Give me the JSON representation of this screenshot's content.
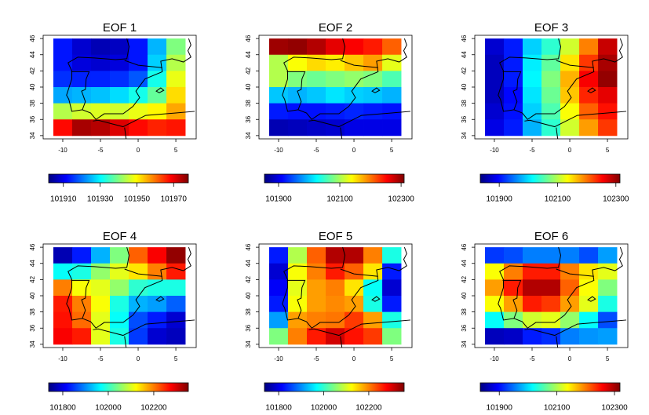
{
  "chart_data": [
    {
      "type": "heatmap",
      "title": "EOF 1",
      "x": [
        -10,
        -7.5,
        -5,
        -2.5,
        0,
        2.5,
        5
      ],
      "y": [
        45,
        43,
        41,
        39,
        37,
        35
      ],
      "xlim": [
        -12.6,
        7.7
      ],
      "ylim": [
        33.6,
        46.4
      ],
      "xticks": [
        -10,
        -5,
        0,
        5
      ],
      "yticks": [
        34,
        36,
        38,
        40,
        42,
        44,
        46
      ],
      "z": [
        [
          101913,
          101908,
          101906,
          101907,
          101913,
          101925,
          101940
        ],
        [
          101913,
          101909,
          101908,
          101909,
          101913,
          101927,
          101944
        ],
        [
          101915,
          101914,
          101914,
          101915,
          101918,
          101932,
          101948
        ],
        [
          101924,
          101925,
          101926,
          101928,
          101932,
          101938,
          101952
        ],
        [
          101944,
          101946,
          101947,
          101946,
          101948,
          101950,
          101956
        ],
        [
          101968,
          101975,
          101974,
          101971,
          101968,
          101966,
          101967
        ]
      ],
      "zlim": [
        101902,
        101978
      ],
      "zticks": [
        101910,
        101930,
        101950,
        101970
      ],
      "colormap": [
        "#00007f",
        "#0000ff",
        "#007fff",
        "#00ffff",
        "#7fff7f",
        "#ffff00",
        "#ff7f00",
        "#ff0000",
        "#7f0000"
      ]
    },
    {
      "type": "heatmap",
      "title": "EOF 2",
      "x": [
        -10,
        -7.5,
        -5,
        -2.5,
        0,
        2.5,
        5
      ],
      "y": [
        45,
        43,
        41,
        39,
        37,
        35
      ],
      "xlim": [
        -12.6,
        7.7
      ],
      "ylim": [
        33.6,
        46.4
      ],
      "xticks": [
        -10,
        -5,
        0,
        5
      ],
      "yticks": [
        34,
        36,
        38,
        40,
        42,
        44,
        46
      ],
      "z": [
        [
          102296,
          102301,
          102287,
          102264,
          102255,
          102242,
          102210
        ],
        [
          102105,
          102137,
          102155,
          102146,
          102164,
          102182,
          102128
        ],
        [
          102105,
          102082,
          102073,
          102082,
          102091,
          102082,
          102059
        ],
        [
          102000,
          101991,
          102000,
          102014,
          102004,
          102000,
          101991
        ],
        [
          101922,
          101918,
          101918,
          101922,
          101927,
          101922,
          101918
        ],
        [
          101877,
          101881,
          101886,
          101890,
          101900,
          101900,
          101900
        ]
      ],
      "zlim": [
        101854,
        102310
      ],
      "zticks": [
        101900,
        102100,
        102300
      ],
      "colormap": [
        "#00007f",
        "#0000ff",
        "#007fff",
        "#00ffff",
        "#7fff7f",
        "#ffff00",
        "#ff7f00",
        "#ff0000",
        "#7f0000"
      ]
    },
    {
      "type": "heatmap",
      "title": "EOF 3",
      "x": [
        -10,
        -7.5,
        -5,
        -2.5,
        0,
        2.5,
        5
      ],
      "y": [
        45,
        43,
        41,
        39,
        37,
        35
      ],
      "xlim": [
        -12.6,
        7.7
      ],
      "ylim": [
        33.6,
        46.4
      ],
      "xticks": [
        -10,
        -5,
        0,
        5
      ],
      "yticks": [
        34,
        36,
        38,
        40,
        42,
        44,
        46
      ],
      "z": [
        [
          101873,
          101907,
          101993,
          102036,
          102113,
          102194,
          102280
        ],
        [
          101864,
          101907,
          102007,
          102060,
          102146,
          102228,
          102295
        ],
        [
          101864,
          101907,
          102012,
          102075,
          102170,
          102257,
          102304
        ],
        [
          101864,
          101897,
          102003,
          102065,
          102161,
          102237,
          102266
        ],
        [
          101873,
          101902,
          101993,
          102051,
          102132,
          102209,
          102247
        ],
        [
          101883,
          101907,
          101979,
          102036,
          102113,
          102180,
          102228
        ]
      ],
      "zlim": [
        101835,
        102314
      ],
      "zticks": [
        101900,
        102100,
        102300
      ],
      "colormap": [
        "#00007f",
        "#0000ff",
        "#007fff",
        "#00ffff",
        "#7fff7f",
        "#ffff00",
        "#ff7f00",
        "#ff0000",
        "#7f0000"
      ]
    },
    {
      "type": "heatmap",
      "title": "EOF 4",
      "x": [
        -10,
        -7.5,
        -5,
        -2.5,
        0,
        2.5,
        5
      ],
      "y": [
        45,
        43,
        41,
        39,
        37,
        35
      ],
      "xlim": [
        -12.6,
        7.7
      ],
      "ylim": [
        33.6,
        46.4
      ],
      "xticks": [
        -10,
        -5,
        0,
        5
      ],
      "yticks": [
        34,
        36,
        38,
        40,
        42,
        44,
        46
      ],
      "z": [
        [
          101769,
          101830,
          101922,
          102045,
          102217,
          102278,
          102340
        ],
        [
          101971,
          101984,
          102057,
          102106,
          102137,
          102199,
          102260
        ],
        [
          102199,
          102119,
          102106,
          102057,
          101996,
          101984,
          101984
        ],
        [
          102260,
          102199,
          102119,
          101984,
          101922,
          101910,
          101873
        ],
        [
          102266,
          102211,
          102106,
          101971,
          101861,
          101830,
          101787
        ],
        [
          102278,
          102260,
          102106,
          101984,
          101849,
          101787,
          101775
        ]
      ],
      "zlim": [
        101738,
        102352
      ],
      "zticks": [
        101800,
        102000,
        102200
      ],
      "colormap": [
        "#00007f",
        "#0000ff",
        "#007fff",
        "#00ffff",
        "#7fff7f",
        "#ffff00",
        "#ff7f00",
        "#ff0000",
        "#7f0000"
      ]
    },
    {
      "type": "heatmap",
      "title": "EOF 5",
      "x": [
        -10,
        -7.5,
        -5,
        -2.5,
        0,
        2.5,
        5
      ],
      "y": [
        45,
        43,
        41,
        39,
        37,
        35
      ],
      "xlim": [
        -12.6,
        7.7
      ],
      "ylim": [
        33.6,
        46.4
      ],
      "xticks": [
        -10,
        -5,
        0,
        5
      ],
      "yticks": [
        34,
        36,
        38,
        40,
        42,
        44,
        46
      ],
      "z": [
        [
          101830,
          102078,
          102221,
          102326,
          102326,
          102202,
          101985
        ],
        [
          101787,
          102121,
          102202,
          102264,
          102221,
          102140,
          101830
        ],
        [
          101811,
          102109,
          102183,
          102202,
          102140,
          101973,
          101787
        ],
        [
          101830,
          102121,
          102183,
          102196,
          102183,
          101985,
          101830
        ],
        [
          101911,
          102183,
          102202,
          102208,
          102245,
          102183,
          101985
        ],
        [
          102047,
          102202,
          102264,
          102307,
          102270,
          102245,
          102047
        ]
      ],
      "zlim": [
        101737,
        102357
      ],
      "zticks": [
        101800,
        102000,
        102200
      ],
      "colormap": [
        "#00007f",
        "#0000ff",
        "#007fff",
        "#00ffff",
        "#7fff7f",
        "#ffff00",
        "#ff7f00",
        "#ff0000",
        "#7f0000"
      ]
    },
    {
      "type": "heatmap",
      "title": "EOF 6",
      "x": [
        -10,
        -7.5,
        -5,
        -2.5,
        0,
        2.5,
        5
      ],
      "y": [
        45,
        43,
        41,
        39,
        37,
        35
      ],
      "xlim": [
        -12.6,
        7.7
      ],
      "ylim": [
        33.6,
        46.4
      ],
      "xticks": [
        -10,
        -5,
        0,
        5
      ],
      "yticks": [
        34,
        36,
        38,
        40,
        42,
        44,
        46
      ],
      "z": [
        [
          101921,
          101931,
          101955,
          101955,
          101955,
          101931,
          101970
        ],
        [
          102135,
          102198,
          102246,
          102246,
          102198,
          102149,
          102125
        ],
        [
          102183,
          102246,
          102295,
          102295,
          102212,
          102135,
          102077
        ],
        [
          102135,
          102183,
          102246,
          102232,
          102183,
          102125,
          102028
        ],
        [
          102018,
          102077,
          102115,
          102125,
          102086,
          102018,
          101931
        ],
        [
          101863,
          101868,
          101907,
          101916,
          101955,
          101965,
          101970
        ]
      ],
      "zlim": [
        101834,
        102319
      ],
      "zticks": [
        101900,
        102100,
        102300
      ],
      "colormap": [
        "#00007f",
        "#0000ff",
        "#007fff",
        "#00ffff",
        "#7fff7f",
        "#ffff00",
        "#ff7f00",
        "#ff0000",
        "#7f0000"
      ]
    }
  ]
}
